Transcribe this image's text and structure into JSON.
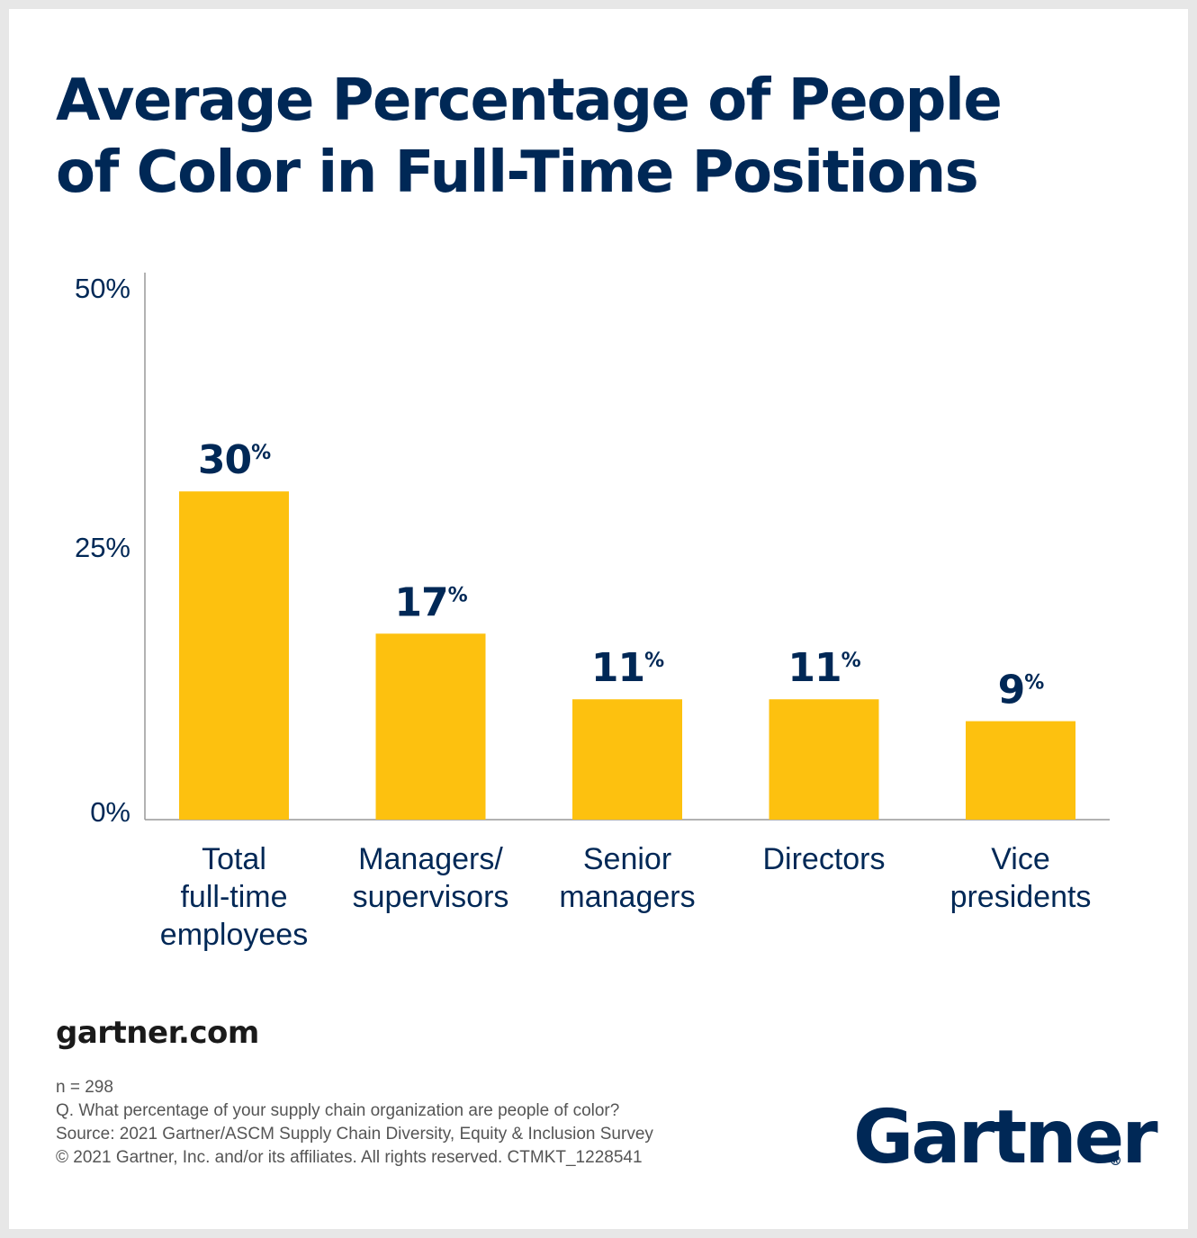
{
  "chart_data": {
    "type": "bar",
    "title": [
      "Average Percentage of People",
      "of Color in Full-Time Positions"
    ],
    "categories": [
      [
        "Total",
        "full-time",
        "employees"
      ],
      [
        "Managers/",
        "supervisors"
      ],
      [
        "Senior",
        "managers"
      ],
      [
        "Directors"
      ],
      [
        "Vice",
        "presidents"
      ]
    ],
    "values": [
      30,
      17,
      11,
      11,
      9
    ],
    "value_labels": [
      "30",
      "17",
      "11",
      "11",
      "9"
    ],
    "value_suffix": "%",
    "ylim": [
      0,
      50
    ],
    "yticks": [
      "0%",
      "25%",
      "50%"
    ],
    "ytick_values": [
      0,
      25,
      50
    ],
    "grid": false,
    "colors": {
      "bar": "#fdc10f",
      "value_label": "#002856",
      "axis": "#999999",
      "tick_label": "#002856",
      "category_label": "#002856"
    }
  },
  "footer": {
    "website": "gartner.com",
    "notes": [
      "n = 298",
      "Q. What percentage of your supply chain organization are people of color?",
      "Source: 2021 Gartner/ASCM Supply Chain Diversity, Equity & Inclusion Survey",
      "© 2021 Gartner, Inc. and/or its affiliates. All rights reserved. CTMKT_1228541"
    ],
    "logo_text": "Gartner",
    "logo_mark": "®"
  }
}
